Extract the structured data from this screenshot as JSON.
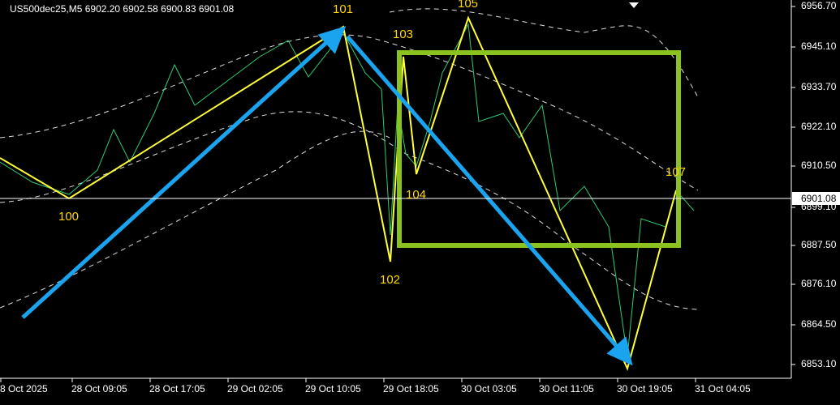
{
  "header": {
    "symbol_info": "US500dec25,M5  6902.20 6902.58 6900.83 6901.08"
  },
  "price_axis": {
    "labels": [
      "6956.70",
      "6945.10",
      "6933.70",
      "6922.10",
      "6910.50",
      "6899.10",
      "6887.50",
      "6876.10",
      "6864.50",
      "6853.10"
    ],
    "current_price": "6901.08"
  },
  "time_axis": {
    "labels": [
      "8 Oct 2025",
      "28 Oct 09:05",
      "28 Oct 17:05",
      "29 Oct 02:05",
      "29 Oct 10:05",
      "29 Oct 18:05",
      "30 Oct 03:05",
      "30 Oct 11:05",
      "30 Oct 19:05",
      "31 Oct 04:05"
    ]
  },
  "wave_labels": [
    "100",
    "101",
    "102",
    "103",
    "104",
    "105",
    "107"
  ]
}
